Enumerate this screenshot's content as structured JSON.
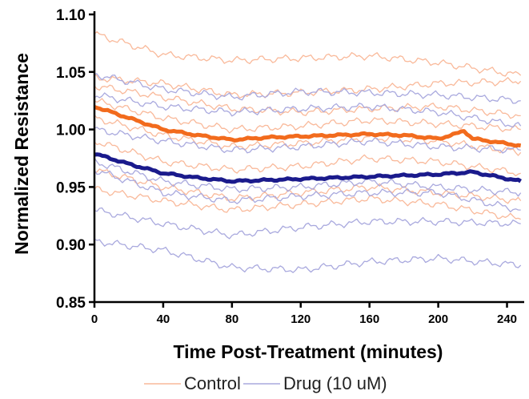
{
  "chart_data": {
    "type": "line",
    "xlabel": "Time Post-Treatment (minutes)",
    "ylabel": "Normalized Resistance",
    "xlim": [
      0,
      250
    ],
    "ylim": [
      0.85,
      1.1
    ],
    "x_ticks": [
      0,
      40,
      80,
      120,
      160,
      200,
      240
    ],
    "y_ticks": [
      0.85,
      0.9,
      0.95,
      1.0,
      1.05,
      1.1
    ],
    "y_tick_labels": [
      "0.85",
      "0.90",
      "0.95",
      "1.00",
      "1.05",
      "1.10"
    ],
    "grid": false,
    "legend_position": "bottom",
    "colors": {
      "control_light": "#f9b99a",
      "control_mean": "#f26b1d",
      "drug_light": "#a9a9de",
      "drug_mean": "#1a1a8c"
    },
    "legend": [
      {
        "label": "Control",
        "color": "#f9b99a"
      },
      {
        "label": "Drug (10 uM)",
        "color": "#a9a9de"
      }
    ],
    "series": [
      {
        "name": "Control",
        "group": "control",
        "role": "replicate",
        "x": [
          0,
          40,
          80,
          120,
          160,
          200,
          248
        ],
        "y": [
          1.083,
          1.065,
          1.06,
          1.062,
          1.064,
          1.058,
          1.047
        ]
      },
      {
        "name": "Control",
        "group": "control",
        "role": "replicate",
        "x": [
          0,
          40,
          80,
          120,
          160,
          200,
          248
        ],
        "y": [
          1.045,
          1.04,
          1.03,
          1.032,
          1.035,
          1.04,
          1.042
        ]
      },
      {
        "name": "Control",
        "group": "control",
        "role": "replicate",
        "x": [
          0,
          40,
          80,
          120,
          160,
          200,
          248
        ],
        "y": [
          1.038,
          1.028,
          1.018,
          1.015,
          1.018,
          1.02,
          1.012
        ]
      },
      {
        "name": "Control",
        "group": "control",
        "role": "replicate",
        "x": [
          0,
          40,
          80,
          120,
          160,
          200,
          248
        ],
        "y": [
          1.025,
          1.01,
          1.0,
          1.003,
          1.008,
          1.005,
          1.0
        ]
      },
      {
        "name": "Control",
        "group": "control",
        "role": "replicate",
        "x": [
          0,
          40,
          80,
          120,
          160,
          200,
          248
        ],
        "y": [
          1.01,
          0.995,
          0.985,
          0.988,
          0.993,
          0.99,
          0.98
        ]
      },
      {
        "name": "Control",
        "group": "control",
        "role": "replicate",
        "x": [
          0,
          40,
          80,
          120,
          160,
          200,
          248
        ],
        "y": [
          0.99,
          0.972,
          0.965,
          0.968,
          0.975,
          0.972,
          0.962
        ]
      },
      {
        "name": "Control",
        "group": "control",
        "role": "replicate",
        "x": [
          0,
          40,
          80,
          120,
          160,
          200,
          248
        ],
        "y": [
          0.965,
          0.95,
          0.94,
          0.945,
          0.95,
          0.945,
          0.938
        ]
      },
      {
        "name": "Control",
        "group": "control",
        "role": "replicate",
        "x": [
          0,
          40,
          80,
          120,
          160,
          200,
          248
        ],
        "y": [
          0.948,
          0.938,
          0.93,
          0.935,
          0.94,
          0.935,
          0.922
        ]
      },
      {
        "name": "Drug (10 uM)",
        "group": "drug",
        "role": "replicate",
        "x": [
          0,
          40,
          80,
          120,
          160,
          200,
          248
        ],
        "y": [
          1.048,
          1.035,
          1.028,
          1.033,
          1.032,
          1.03,
          1.025
        ]
      },
      {
        "name": "Drug (10 uM)",
        "group": "drug",
        "role": "replicate",
        "x": [
          0,
          40,
          80,
          120,
          160,
          200,
          248
        ],
        "y": [
          1.03,
          1.02,
          1.015,
          1.018,
          1.02,
          1.015,
          1.003
        ]
      },
      {
        "name": "Drug (10 uM)",
        "group": "drug",
        "role": "replicate",
        "x": [
          0,
          40,
          80,
          120,
          160,
          200,
          248
        ],
        "y": [
          1.0,
          0.99,
          0.982,
          0.985,
          0.99,
          0.985,
          0.982
        ]
      },
      {
        "name": "Drug (10 uM)",
        "group": "drug",
        "role": "replicate",
        "x": [
          0,
          40,
          80,
          120,
          160,
          200,
          248
        ],
        "y": [
          0.972,
          0.955,
          0.948,
          0.95,
          0.955,
          0.95,
          0.945
        ]
      },
      {
        "name": "Drug (10 uM)",
        "group": "drug",
        "role": "replicate",
        "x": [
          0,
          40,
          80,
          120,
          160,
          200,
          248
        ],
        "y": [
          0.965,
          0.945,
          0.938,
          0.942,
          0.945,
          0.945,
          0.93
        ]
      },
      {
        "name": "Drug (10 uM)",
        "group": "drug",
        "role": "replicate",
        "x": [
          0,
          40,
          80,
          120,
          160,
          200,
          248
        ],
        "y": [
          0.93,
          0.918,
          0.908,
          0.915,
          0.92,
          0.92,
          0.918
        ]
      },
      {
        "name": "Drug (10 uM)",
        "group": "drug",
        "role": "replicate",
        "x": [
          0,
          40,
          80,
          120,
          160,
          200,
          248
        ],
        "y": [
          0.903,
          0.895,
          0.88,
          0.878,
          0.885,
          0.888,
          0.882
        ]
      },
      {
        "name": "Control",
        "group": "control",
        "role": "mean",
        "x": [
          0,
          20,
          40,
          60,
          80,
          100,
          120,
          140,
          160,
          180,
          200,
          210,
          215,
          220,
          248
        ],
        "y": [
          1.02,
          1.01,
          1.0,
          0.995,
          0.991,
          0.993,
          0.994,
          0.995,
          0.996,
          0.995,
          0.992,
          0.996,
          0.999,
          0.992,
          0.986
        ]
      },
      {
        "name": "Drug (10 uM)",
        "group": "drug",
        "role": "mean",
        "x": [
          0,
          20,
          40,
          60,
          80,
          100,
          120,
          140,
          160,
          180,
          200,
          220,
          248
        ],
        "y": [
          0.979,
          0.97,
          0.962,
          0.958,
          0.955,
          0.956,
          0.957,
          0.958,
          0.959,
          0.96,
          0.961,
          0.963,
          0.955
        ]
      }
    ]
  }
}
